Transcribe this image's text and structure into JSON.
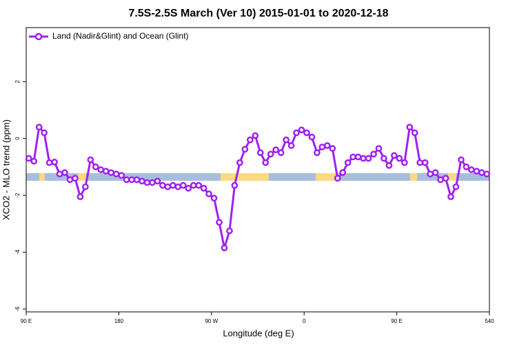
{
  "chart_data": {
    "type": "line",
    "title": "7.5S-2.5S March (Ver 10)   2015-01-01 to 2020-12-18",
    "x_label": "Longitude (deg E)",
    "y_label": "XCO2 - MLO trend (ppm)",
    "xlim": [
      90,
      540
    ],
    "xticks": [
      {
        "value": 90,
        "label": "90 E"
      },
      180,
      {
        "value": 270,
        "label": "90 W"
      },
      {
        "value": 360,
        "label": "0"
      },
      {
        "value": 450,
        "label": "90 E"
      },
      540
    ],
    "ylim": [
      -6.1,
      3.9
    ],
    "yticks": [
      -6,
      -4,
      -2,
      0,
      2
    ],
    "legend": "top-left",
    "x": [
      92.5,
      97.5,
      102.5,
      107.5,
      112.5,
      117.5,
      122.5,
      127.5,
      132.5,
      137.5,
      142.5,
      147.5,
      152.5,
      157.5,
      162.5,
      167.5,
      172.5,
      177.5,
      182.5,
      187.5,
      192.5,
      197.5,
      202.5,
      207.5,
      212.5,
      217.5,
      222.5,
      227.5,
      232.5,
      237.5,
      242.5,
      247.5,
      252.5,
      257.5,
      262.5,
      267.5,
      272.5,
      277.5,
      282.5,
      287.5,
      292.5,
      297.5,
      302.5,
      307.5,
      312.5,
      317.5,
      322.5,
      327.5,
      332.5,
      337.5,
      342.5,
      347.5,
      352.5,
      357.5,
      362.5,
      367.5,
      372.5,
      377.5,
      382.5,
      387.5,
      392.5,
      397.5,
      402.5,
      407.5,
      412.5,
      417.5,
      422.5,
      427.5,
      432.5,
      437.5,
      442.5,
      447.5,
      452.5,
      457.5,
      462.5,
      467.5,
      472.5,
      477.5,
      482.5,
      487.5,
      492.5,
      497.5,
      502.5,
      507.5,
      512.5,
      517.5,
      522.5,
      527.5,
      532.5,
      537.5
    ],
    "series": [
      {
        "name": "Land (Nadir&Glint) and Ocean (Glint)",
        "color": "#a020f0",
        "values": [
          -0.7,
          -0.8,
          0.4,
          0.2,
          -0.85,
          -0.83,
          -1.25,
          -1.2,
          -1.45,
          -1.4,
          -2.05,
          -1.7,
          -0.75,
          -1.0,
          -1.1,
          -1.15,
          -1.2,
          -1.25,
          -1.3,
          -1.45,
          -1.45,
          -1.45,
          -1.5,
          -1.55,
          -1.55,
          -1.5,
          -1.65,
          -1.7,
          -1.65,
          -1.7,
          -1.65,
          -1.75,
          -1.65,
          -1.65,
          -1.75,
          -1.95,
          -2.1,
          -2.95,
          -3.85,
          -3.25,
          -1.65,
          -0.85,
          -0.38,
          -0.05,
          0.1,
          -0.5,
          -0.85,
          -0.55,
          -0.4,
          -0.5,
          -0.05,
          -0.25,
          0.2,
          0.3,
          0.2,
          0.05,
          -0.5,
          -0.3,
          -0.25,
          -0.35,
          -1.4,
          -1.2,
          -0.85,
          -0.65,
          -0.65,
          -0.7,
          -0.7,
          -0.55,
          -0.35,
          -0.7,
          -0.95,
          -0.6,
          -0.7,
          -0.85,
          0.4,
          0.2,
          -0.85,
          -0.85,
          -1.25,
          -1.2,
          -1.45,
          -1.4,
          -2.05,
          -1.7,
          -0.75,
          -1.0,
          -1.1,
          -1.15,
          -1.2,
          -1.25
        ]
      }
    ]
  }
}
